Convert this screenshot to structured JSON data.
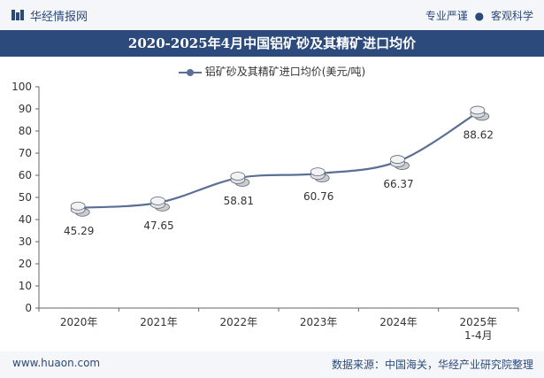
{
  "header": {
    "brand": "华经情报网",
    "slogan_left": "专业严谨",
    "slogan_sep": "●",
    "slogan_right": "客观科学"
  },
  "footer": {
    "url": "www.huaon.com",
    "source": "数据来源：中国海关，华经产业研究院整理"
  },
  "colors": {
    "title_bg": "#2c4a7c",
    "line": "#5b6f96",
    "brand": "#2a4a7a"
  },
  "chart_data": {
    "type": "line",
    "title": "2020-2025年4月中国铝矿砂及其精矿进口均价",
    "categories": [
      "2020年",
      "2021年",
      "2022年",
      "2023年",
      "2024年",
      "2025年\n1-4月"
    ],
    "series": [
      {
        "name": "铝矿砂及其精矿进口均价(美元/吨)",
        "values": [
          45.29,
          47.65,
          58.81,
          60.76,
          66.37,
          88.62
        ]
      }
    ],
    "data_labels": [
      "45.29",
      "47.65",
      "58.81",
      "60.76",
      "66.37",
      "88.62"
    ],
    "ylim": [
      0,
      100
    ],
    "yticks": [
      0,
      10,
      20,
      30,
      40,
      50,
      60,
      70,
      80,
      90,
      100
    ],
    "xlabel": "",
    "ylabel": "",
    "legend": "top-center",
    "grid": false
  }
}
